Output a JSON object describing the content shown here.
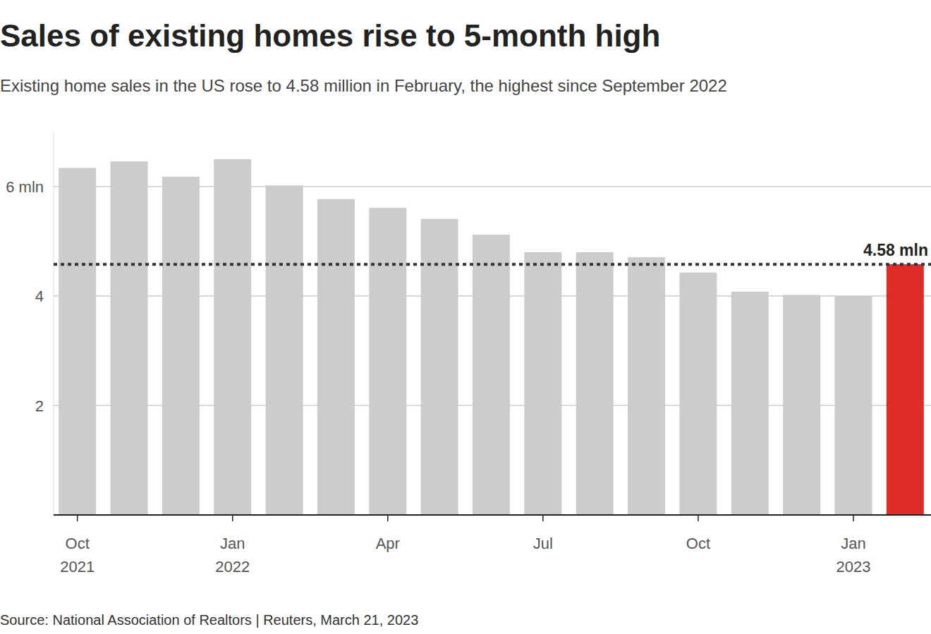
{
  "chart_data": {
    "type": "bar",
    "title": "Sales of existing homes rise to 5-month high",
    "subtitle": "Existing home sales in the US rose to 4.58 million in February, the highest since September 2022",
    "source": "Source: National Association of Realtors | Reuters, March 21, 2023",
    "categories": [
      "Oct\n2021",
      null,
      null,
      "Jan\n2022",
      null,
      null,
      "Apr",
      null,
      null,
      "Jul",
      null,
      null,
      "Oct",
      null,
      null,
      "Jan\n2023",
      null
    ],
    "values": [
      6.34,
      6.46,
      6.18,
      6.5,
      6.02,
      5.77,
      5.61,
      5.41,
      5.12,
      4.8,
      4.8,
      4.71,
      4.43,
      4.08,
      4.02,
      4.0,
      4.58
    ],
    "colors": [
      "#cccccc",
      "#cccccc",
      "#cccccc",
      "#cccccc",
      "#cccccc",
      "#cccccc",
      "#cccccc",
      "#cccccc",
      "#cccccc",
      "#cccccc",
      "#cccccc",
      "#cccccc",
      "#cccccc",
      "#cccccc",
      "#cccccc",
      "#cccccc",
      "#de2d26"
    ],
    "ylim": [
      0,
      7
    ],
    "yticks": [
      2,
      4,
      {
        "value": 6,
        "label": "6 mln"
      }
    ],
    "grid": true,
    "annotation": {
      "value": 4.58,
      "label": "4.58 mln"
    }
  }
}
